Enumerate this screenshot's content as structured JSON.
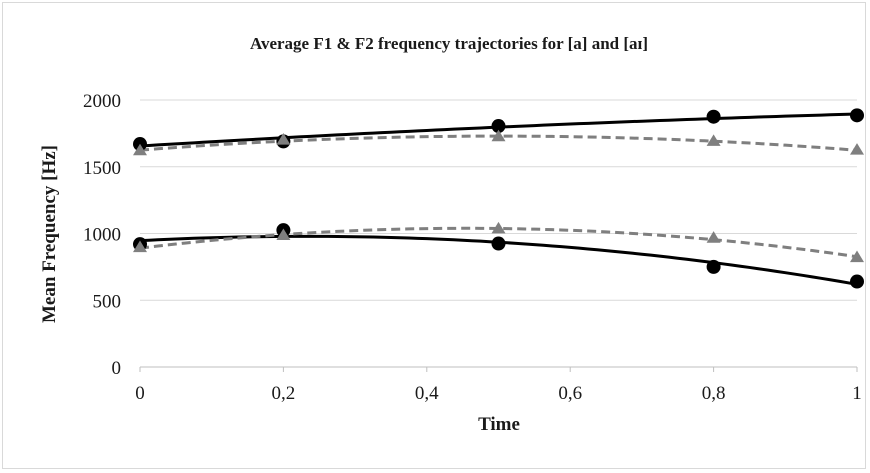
{
  "chart_data": {
    "type": "scatter",
    "title": "Average F1 & F2 frequency trajectories for [a] and [aɪ]",
    "xlabel": "Time",
    "ylabel": "Mean Frequency [Hz]",
    "xlim": [
      0,
      1
    ],
    "ylim": [
      0,
      2000
    ],
    "x_ticks": [
      0,
      0.2,
      0.4,
      0.6,
      0.8,
      1
    ],
    "x_tick_labels": [
      "0",
      "0,2",
      "0,4",
      "0,6",
      "0,8",
      "1"
    ],
    "y_ticks": [
      0,
      500,
      1000,
      1500,
      2000
    ],
    "y_tick_labels": [
      "0",
      "500",
      "1000",
      "1500",
      "2000"
    ],
    "grid": "horizontal",
    "legend": "none",
    "series": [
      {
        "marker": "circle",
        "line": "solid",
        "color": "#000000",
        "x": [
          0,
          0.2,
          0.5,
          0.8,
          1
        ],
        "y": [
          1670,
          1690,
          1805,
          1875,
          1885
        ]
      },
      {
        "marker": "triangle",
        "line": "dashed",
        "color": "#7f7f7f",
        "x": [
          0,
          0.2,
          0.5,
          0.8,
          1
        ],
        "y": [
          1620,
          1700,
          1725,
          1690,
          1625
        ]
      },
      {
        "marker": "circle",
        "line": "solid",
        "color": "#000000",
        "x": [
          0,
          0.2,
          0.5,
          0.8,
          1
        ],
        "y": [
          920,
          1025,
          925,
          750,
          640
        ]
      },
      {
        "marker": "triangle",
        "line": "dashed",
        "color": "#7f7f7f",
        "x": [
          0,
          0.2,
          0.5,
          0.8,
          1
        ],
        "y": [
          895,
          985,
          1035,
          965,
          820
        ]
      }
    ]
  }
}
